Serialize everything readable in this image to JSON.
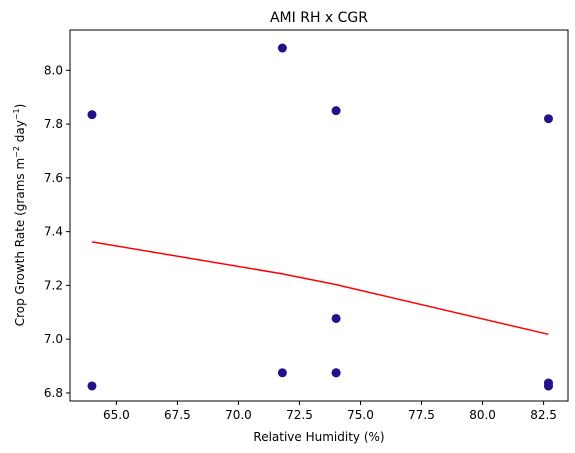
{
  "chart_data": {
    "type": "scatter",
    "title": "AMI RH x CGR",
    "xlabel": "Relative Humidity (%)",
    "ylabel_main": "Crop Growth Rate (grams m",
    "ylabel_sup1": "−2",
    "ylabel_mid": " day",
    "ylabel_sup2": "−1",
    "ylabel_end": ")",
    "xlim": [
      63.1,
      83.5
    ],
    "ylim": [
      6.77,
      8.15
    ],
    "xticks": [
      65.0,
      67.5,
      70.0,
      72.5,
      75.0,
      77.5,
      80.0,
      82.5
    ],
    "xtick_labels": [
      "65.0",
      "67.5",
      "70.0",
      "72.5",
      "75.0",
      "77.5",
      "80.0",
      "82.5"
    ],
    "yticks": [
      6.8,
      7.0,
      7.2,
      7.4,
      7.6,
      7.8,
      8.0
    ],
    "ytick_labels": [
      "6.8",
      "7.0",
      "7.2",
      "7.4",
      "7.6",
      "7.8",
      "8.0"
    ],
    "grid": false,
    "colors": {
      "points": "#22138c",
      "fit_line": "#ff0000"
    },
    "points": [
      {
        "x": 64.0,
        "y": 7.835
      },
      {
        "x": 64.0,
        "y": 6.826
      },
      {
        "x": 71.8,
        "y": 8.083
      },
      {
        "x": 71.8,
        "y": 6.875
      },
      {
        "x": 74.0,
        "y": 7.85
      },
      {
        "x": 74.0,
        "y": 7.077
      },
      {
        "x": 74.0,
        "y": 6.875
      },
      {
        "x": 74.0,
        "y": 6.875
      },
      {
        "x": 82.7,
        "y": 7.82
      },
      {
        "x": 82.7,
        "y": 6.837
      },
      {
        "x": 82.7,
        "y": 6.826
      },
      {
        "x": 82.7,
        "y": 6.826
      }
    ],
    "fit_line": [
      {
        "x": 64.0,
        "y": 7.362
      },
      {
        "x": 71.8,
        "y": 7.243
      },
      {
        "x": 74.0,
        "y": 7.203
      },
      {
        "x": 82.7,
        "y": 7.018
      }
    ]
  }
}
